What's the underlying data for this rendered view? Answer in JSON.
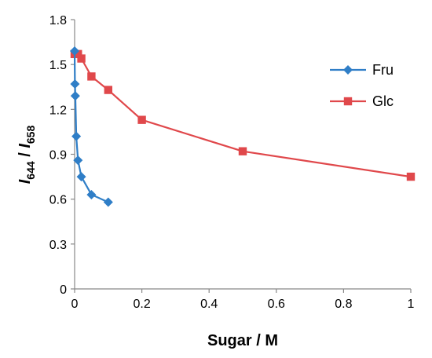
{
  "chart_data": {
    "type": "scatter",
    "xlabel": "Sugar / M",
    "ylabel": {
      "i1": "I",
      "sub1": "644",
      "sep": " / ",
      "i2": "I",
      "sub2": "658"
    },
    "xlim": [
      0,
      1
    ],
    "ylim": [
      0,
      1.8
    ],
    "xticks": [
      "0",
      "0.2",
      "0.4",
      "0.6",
      "0.8",
      "1"
    ],
    "yticks": [
      "0",
      "0.3",
      "0.6",
      "0.9",
      "1.2",
      "1.5",
      "1.8"
    ],
    "grid": false,
    "legend_position": "right",
    "series": [
      {
        "name": "Fru",
        "color": "#2f7ec7",
        "marker": "diamond",
        "x": [
          0,
          0.001,
          0.002,
          0.005,
          0.01,
          0.02,
          0.05,
          0.1
        ],
        "y": [
          1.59,
          1.37,
          1.29,
          1.02,
          0.86,
          0.75,
          0.63,
          0.58
        ]
      },
      {
        "name": "Glc",
        "color": "#e0484b",
        "marker": "square",
        "x": [
          0,
          0.01,
          0.02,
          0.05,
          0.1,
          0.2,
          0.5,
          1.0
        ],
        "y": [
          1.57,
          1.57,
          1.54,
          1.42,
          1.33,
          1.13,
          0.92,
          0.75
        ]
      }
    ]
  }
}
